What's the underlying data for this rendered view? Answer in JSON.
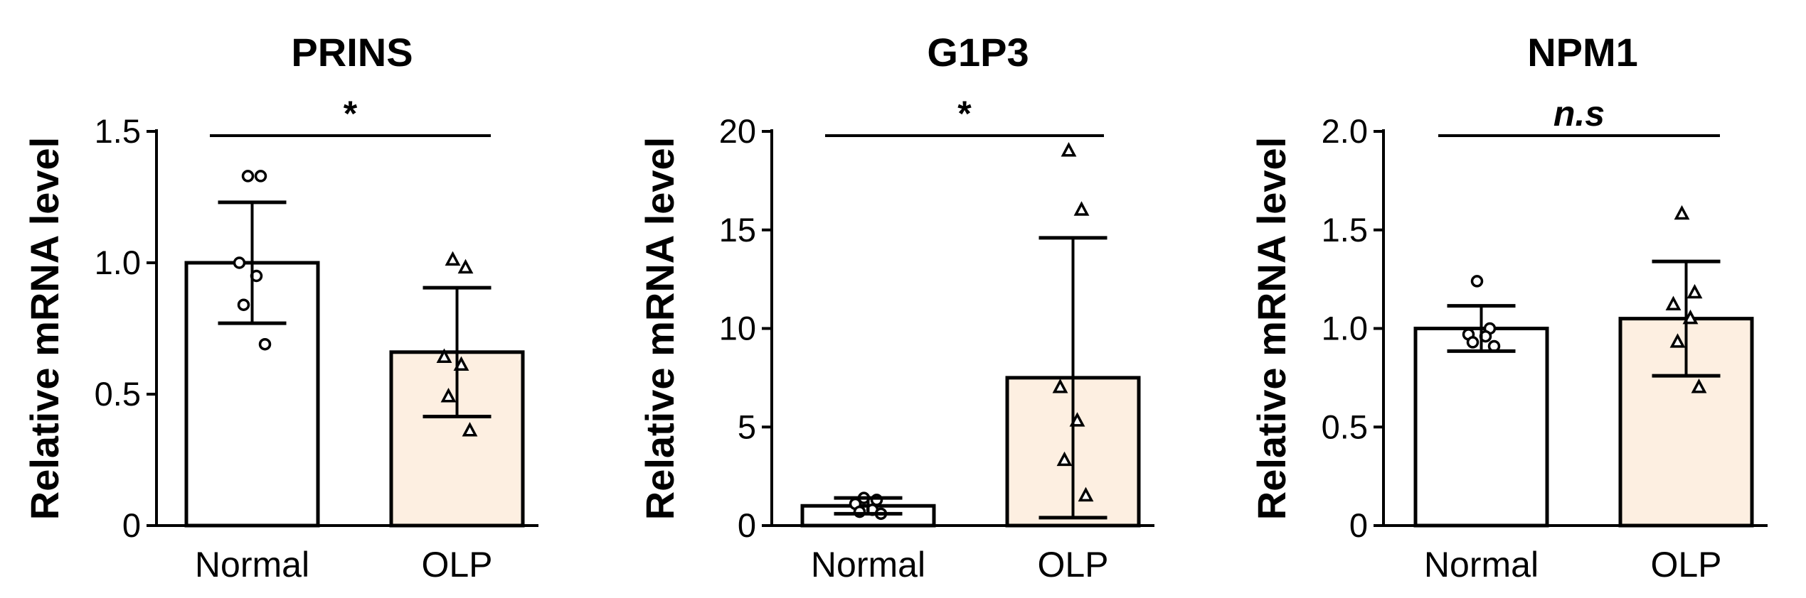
{
  "chart_data": [
    {
      "type": "bar",
      "title": "PRINS",
      "ylabel": "Relative mRNA level",
      "categories": [
        "Normal",
        "OLP"
      ],
      "ylim": [
        0,
        1.5
      ],
      "yticks": [
        "0",
        "0.5",
        "1.0",
        "1.5"
      ],
      "ytick_values": [
        0,
        0.5,
        1.0,
        1.5
      ],
      "values": [
        1.0,
        0.66
      ],
      "sd": [
        0.23,
        0.245
      ],
      "points": [
        [
          1.33,
          1.33,
          1.0,
          0.95,
          0.84,
          0.69
        ],
        [
          1.01,
          0.98,
          0.64,
          0.61,
          0.49,
          0.36
        ]
      ],
      "significance": "*",
      "bar_colors": [
        "#ffffff",
        "#fdefe1"
      ]
    },
    {
      "type": "bar",
      "title": "G1P3",
      "ylabel": "Relative mRNA level",
      "categories": [
        "Normal",
        "OLP"
      ],
      "ylim": [
        0,
        20
      ],
      "yticks": [
        "0",
        "5",
        "10",
        "15",
        "20"
      ],
      "ytick_values": [
        0,
        5,
        10,
        15,
        20
      ],
      "values": [
        1.0,
        7.5
      ],
      "sd": [
        0.4,
        7.1
      ],
      "points": [
        [
          1.4,
          1.3,
          1.1,
          0.8,
          0.7,
          0.6
        ],
        [
          19.0,
          16.0,
          7.0,
          5.3,
          3.3,
          1.5
        ]
      ],
      "significance": "*",
      "bar_colors": [
        "#ffffff",
        "#fdefe1"
      ]
    },
    {
      "type": "bar",
      "title": "NPM1",
      "ylabel": "Relative mRNA level",
      "categories": [
        "Normal",
        "OLP"
      ],
      "ylim": [
        0,
        2.0
      ],
      "yticks": [
        "0",
        "0.5",
        "1.0",
        "1.5",
        "2.0"
      ],
      "ytick_values": [
        0,
        0.5,
        1.0,
        1.5,
        2.0
      ],
      "values": [
        1.0,
        1.05
      ],
      "sd": [
        0.115,
        0.29
      ],
      "points": [
        [
          1.24,
          1.0,
          0.97,
          0.96,
          0.93,
          0.91
        ],
        [
          1.58,
          1.18,
          1.12,
          1.05,
          0.93,
          0.7
        ]
      ],
      "significance": "n.s",
      "bar_colors": [
        "#ffffff",
        "#fdefe1"
      ]
    }
  ]
}
